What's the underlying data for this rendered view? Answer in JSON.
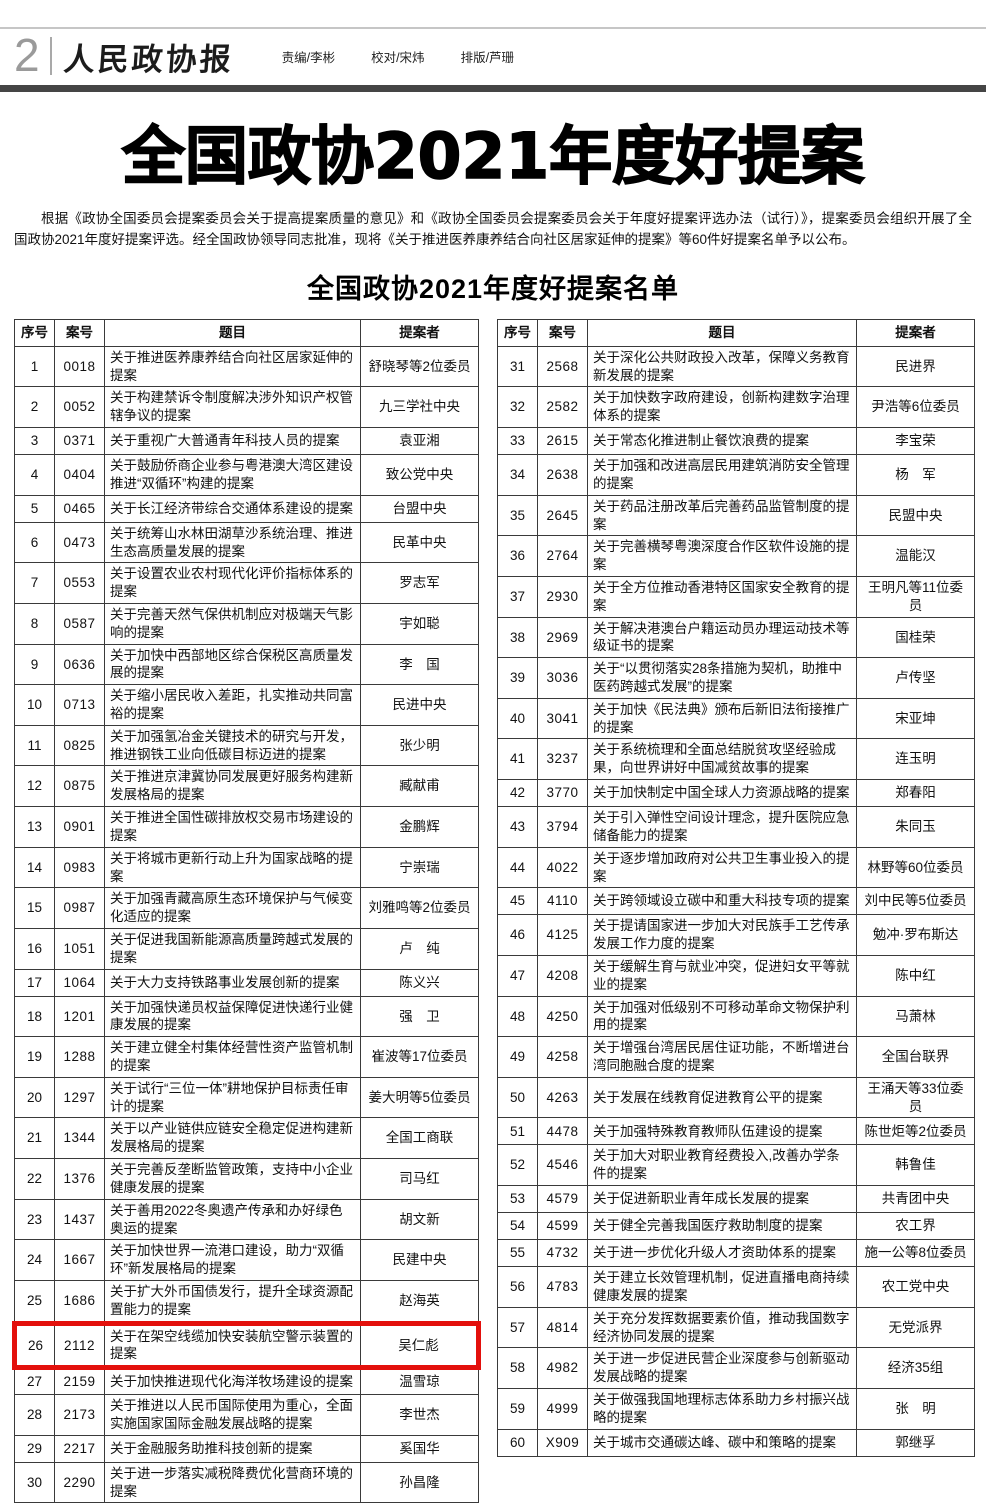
{
  "header": {
    "page_number": "2",
    "paper_name": "人民政协报",
    "credits": [
      "责编/李彬",
      "校对/宋炜",
      "排版/芦珊"
    ]
  },
  "headline": "全国政协2021年度好提案",
  "intro": "根据《政协全国委员会提案委员会关于提高提案质量的意见》和《政协全国委员会提案委员会关于年度好提案评选办法（试行）》，提案委员会组织开展了全国政协2021年度好提案评选。经全国政协领导同志批准，现将《关于推进医养康养结合向社区居家延伸的提案》等60件好提案名单予以公布。",
  "list_title": "全国政协2021年度好提案名单",
  "table_headers": [
    "序号",
    "案号",
    "题目",
    "提案者"
  ],
  "highlight": {
    "row_number": "26",
    "color": "#e3100c"
  },
  "left_rows": [
    {
      "no": "1",
      "case": "0018",
      "title": "关于推进医养康养结合向社区居家延伸的提案",
      "proposer": "舒晓琴等2位委员"
    },
    {
      "no": "2",
      "case": "0052",
      "title": "关于构建禁诉令制度解决涉外知识产权管辖争议的提案",
      "proposer": "九三学社中央"
    },
    {
      "no": "3",
      "case": "0371",
      "title": "关于重视广大普通青年科技人员的提案",
      "proposer": "袁亚湘"
    },
    {
      "no": "4",
      "case": "0404",
      "title": "关于鼓励侨商企业参与粤港澳大湾区建设推进“双循环”构建的提案",
      "proposer": "致公党中央"
    },
    {
      "no": "5",
      "case": "0465",
      "title": "关于长江经济带综合交通体系建设的提案",
      "proposer": "台盟中央"
    },
    {
      "no": "6",
      "case": "0473",
      "title": "关于统筹山水林田湖草沙系统治理、推进生态高质量发展的提案",
      "proposer": "民革中央"
    },
    {
      "no": "7",
      "case": "0553",
      "title": "关于设置农业农村现代化评价指标体系的提案",
      "proposer": "罗志军"
    },
    {
      "no": "8",
      "case": "0587",
      "title": "关于完善天然气保供机制应对极端天气影响的提案",
      "proposer": "宇如聪"
    },
    {
      "no": "9",
      "case": "0636",
      "title": "关于加快中西部地区综合保税区高质量发展的提案",
      "proposer": "李　国"
    },
    {
      "no": "10",
      "case": "0713",
      "title": "关于缩小居民收入差距，扎实推动共同富裕的提案",
      "proposer": "民进中央"
    },
    {
      "no": "11",
      "case": "0825",
      "title": "关于加强氢冶金关键技术的研究与开发，推进钢铁工业向低碳目标迈进的提案",
      "proposer": "张少明"
    },
    {
      "no": "12",
      "case": "0875",
      "title": "关于推进京津冀协同发展更好服务构建新发展格局的提案",
      "proposer": "臧献甫"
    },
    {
      "no": "13",
      "case": "0901",
      "title": "关于推进全国性碳排放权交易市场建设的提案",
      "proposer": "金鹏辉"
    },
    {
      "no": "14",
      "case": "0983",
      "title": "关于将城市更新行动上升为国家战略的提案",
      "proposer": "宁崇瑞"
    },
    {
      "no": "15",
      "case": "0987",
      "title": "关于加强青藏高原生态环境保护与气候变化适应的提案",
      "proposer": "刘雅鸣等2位委员"
    },
    {
      "no": "16",
      "case": "1051",
      "title": "关于促进我国新能源高质量跨越式发展的提案",
      "proposer": "卢　纯"
    },
    {
      "no": "17",
      "case": "1064",
      "title": "关于大力支持铁路事业发展创新的提案",
      "proposer": "陈义兴"
    },
    {
      "no": "18",
      "case": "1201",
      "title": "关于加强快递员权益保障促进快递行业健康发展的提案",
      "proposer": "强　卫"
    },
    {
      "no": "19",
      "case": "1288",
      "title": "关于建立健全村集体经营性资产监管机制的提案",
      "proposer": "崔波等17位委员"
    },
    {
      "no": "20",
      "case": "1297",
      "title": "关于试行“三位一体”耕地保护目标责任审计的提案",
      "proposer": "姜大明等5位委员"
    },
    {
      "no": "21",
      "case": "1344",
      "title": "关于以产业链供应链安全稳定促进构建新发展格局的提案",
      "proposer": "全国工商联"
    },
    {
      "no": "22",
      "case": "1376",
      "title": "关于完善反垄断监管政策，支持中小企业健康发展的提案",
      "proposer": "司马红"
    },
    {
      "no": "23",
      "case": "1437",
      "title": "关于善用2022冬奥遗产传承和办好绿色奥运的提案",
      "proposer": "胡文新"
    },
    {
      "no": "24",
      "case": "1667",
      "title": "关于加快世界一流港口建设，助力“双循环”新发展格局的提案",
      "proposer": "民建中央"
    },
    {
      "no": "25",
      "case": "1686",
      "title": "关于扩大外币国债发行，提升全球资源配置能力的提案",
      "proposer": "赵海英"
    },
    {
      "no": "26",
      "case": "2112",
      "title": "关于在架空线缆加快安装航空警示装置的提案",
      "proposer": "吴仁彪"
    },
    {
      "no": "27",
      "case": "2159",
      "title": "关于加快推进现代化海洋牧场建设的提案",
      "proposer": "温雪琼"
    },
    {
      "no": "28",
      "case": "2173",
      "title": "关于推进以人民币国际使用为重心，全面实施国家国际金融发展战略的提案",
      "proposer": "李世杰"
    },
    {
      "no": "29",
      "case": "2217",
      "title": "关于金融服务助推科技创新的提案",
      "proposer": "奚国华"
    },
    {
      "no": "30",
      "case": "2290",
      "title": "关于进一步落实减税降费优化营商环境的提案",
      "proposer": "孙昌隆"
    }
  ],
  "right_rows": [
    {
      "no": "31",
      "case": "2568",
      "title": "关于深化公共财政投入改革，保障义务教育新发展的提案",
      "proposer": "民进界"
    },
    {
      "no": "32",
      "case": "2582",
      "title": "关于加快数字政府建设，创新构建数字治理体系的提案",
      "proposer": "尹浩等6位委员"
    },
    {
      "no": "33",
      "case": "2615",
      "title": "关于常态化推进制止餐饮浪费的提案",
      "proposer": "李宝荣"
    },
    {
      "no": "34",
      "case": "2638",
      "title": "关于加强和改进高层民用建筑消防安全管理的提案",
      "proposer": "杨　军"
    },
    {
      "no": "35",
      "case": "2645",
      "title": "关于药品注册改革后完善药品监管制度的提案",
      "proposer": "民盟中央"
    },
    {
      "no": "36",
      "case": "2764",
      "title": "关于完善横琴粤澳深度合作区软件设施的提案",
      "proposer": "温能汉"
    },
    {
      "no": "37",
      "case": "2930",
      "title": "关于全方位推动香港特区国家安全教育的提案",
      "proposer": "王明凡等11位委员"
    },
    {
      "no": "38",
      "case": "2969",
      "title": "关于解决港澳台户籍运动员办理运动技术等级证书的提案",
      "proposer": "国桂荣"
    },
    {
      "no": "39",
      "case": "3036",
      "title": "关于“以贯彻落实28条措施为契机，助推中医药跨越式发展”的提案",
      "proposer": "卢传坚"
    },
    {
      "no": "40",
      "case": "3041",
      "title": "关于加快《民法典》颁布后新旧法衔接推广的提案",
      "proposer": "宋亚坤"
    },
    {
      "no": "41",
      "case": "3237",
      "title": "关于系统梳理和全面总结脱贫攻坚经验成果，向世界讲好中国减贫故事的提案",
      "proposer": "连玉明"
    },
    {
      "no": "42",
      "case": "3770",
      "title": "关于加快制定中国全球人力资源战略的提案",
      "proposer": "郑春阳"
    },
    {
      "no": "43",
      "case": "3794",
      "title": "关于引入弹性空间设计理念，提升医院应急储备能力的提案",
      "proposer": "朱同玉"
    },
    {
      "no": "44",
      "case": "4022",
      "title": "关于逐步增加政府对公共卫生事业投入的提案",
      "proposer": "林野等60位委员"
    },
    {
      "no": "45",
      "case": "4110",
      "title": "关于跨领域设立碳中和重大科技专项的提案",
      "proposer": "刘中民等5位委员"
    },
    {
      "no": "46",
      "case": "4125",
      "title": "关于提请国家进一步加大对民族手工艺传承发展工作力度的提案",
      "proposer": "勉冲·罗布斯达"
    },
    {
      "no": "47",
      "case": "4208",
      "title": "关于缓解生育与就业冲突，促进妇女平等就业的提案",
      "proposer": "陈中红"
    },
    {
      "no": "48",
      "case": "4250",
      "title": "关于加强对低级别不可移动革命文物保护利用的提案",
      "proposer": "马萧林"
    },
    {
      "no": "49",
      "case": "4258",
      "title": "关于增强台湾居民居住证功能，不断增进台湾同胞融合度的提案",
      "proposer": "全国台联界"
    },
    {
      "no": "50",
      "case": "4263",
      "title": "关于发展在线教育促进教育公平的提案",
      "proposer": "王涌天等33位委员"
    },
    {
      "no": "51",
      "case": "4478",
      "title": "关于加强特殊教育教师队伍建设的提案",
      "proposer": "陈世炬等2位委员"
    },
    {
      "no": "52",
      "case": "4546",
      "title": "关于加大对职业教育经费投入,改善办学条件的提案",
      "proposer": "韩鲁佳"
    },
    {
      "no": "53",
      "case": "4579",
      "title": "关于促进新职业青年成长发展的提案",
      "proposer": "共青团中央"
    },
    {
      "no": "54",
      "case": "4599",
      "title": "关于健全完善我国医疗救助制度的提案",
      "proposer": "农工界"
    },
    {
      "no": "55",
      "case": "4732",
      "title": "关于进一步优化升级人才资助体系的提案",
      "proposer": "施一公等8位委员"
    },
    {
      "no": "56",
      "case": "4783",
      "title": "关于建立长效管理机制，促进直播电商持续健康发展的提案",
      "proposer": "农工党中央"
    },
    {
      "no": "57",
      "case": "4814",
      "title": "关于充分发挥数据要素价值，推动我国数字经济协同发展的提案",
      "proposer": "无党派界"
    },
    {
      "no": "58",
      "case": "4982",
      "title": "关于进一步促进民营企业深度参与创新驱动发展战略的提案",
      "proposer": "经济35组"
    },
    {
      "no": "59",
      "case": "4999",
      "title": "关于做强我国地理标志体系助力乡村振兴战略的提案",
      "proposer": "张　明"
    },
    {
      "no": "60",
      "case": "X909",
      "title": "关于城市交通碳达峰、碳中和策略的提案",
      "proposer": "郭继孚"
    }
  ]
}
